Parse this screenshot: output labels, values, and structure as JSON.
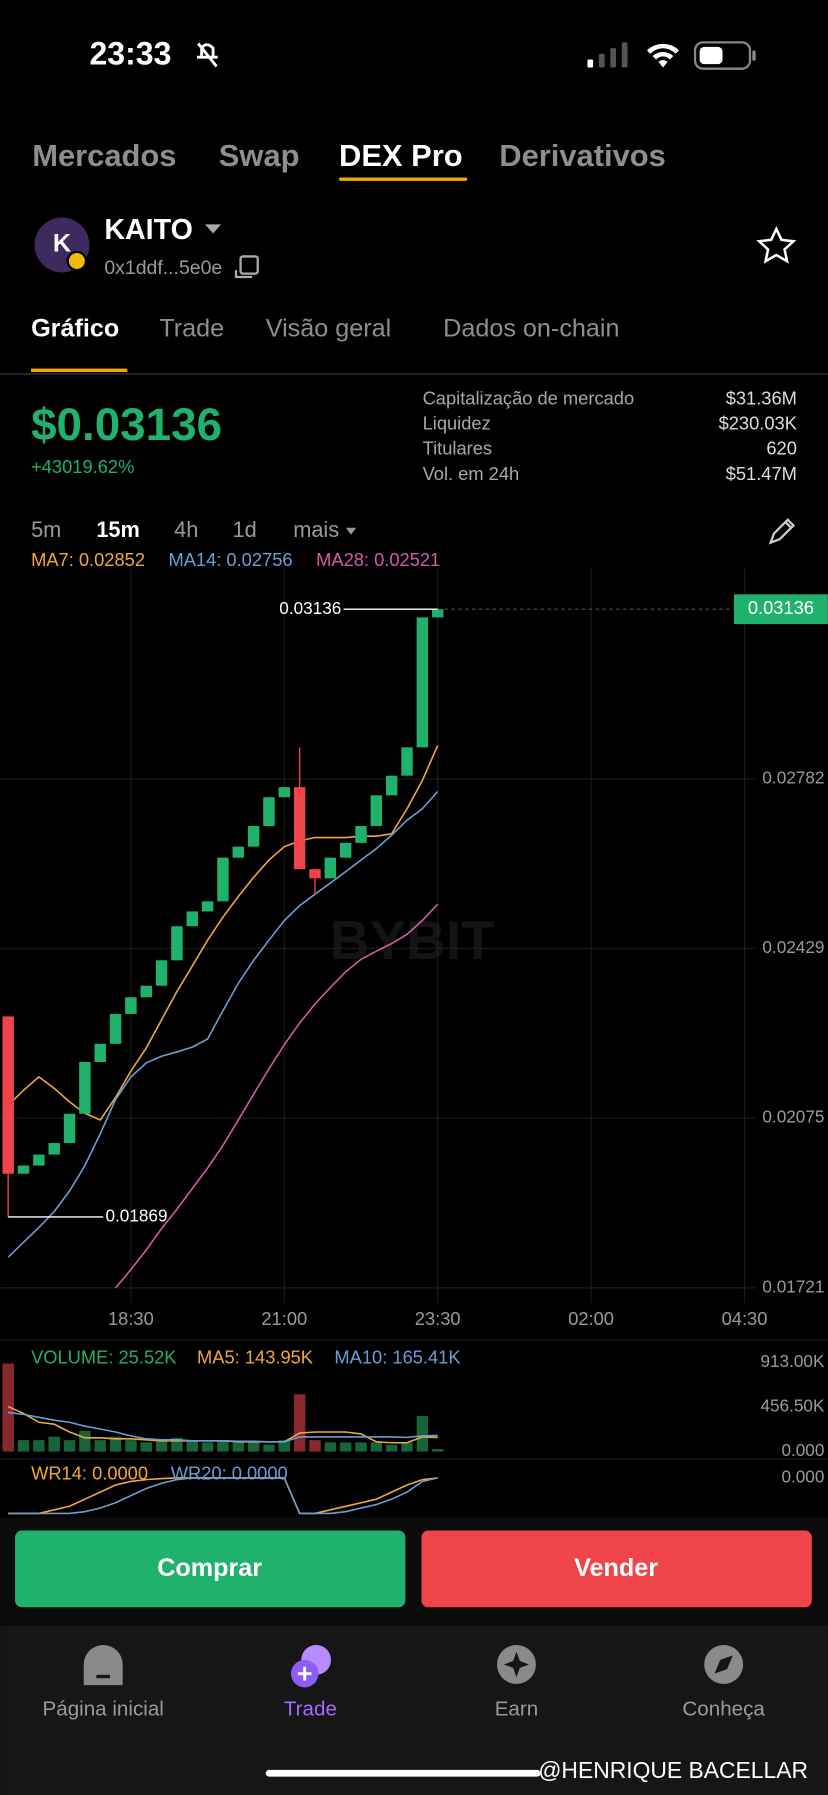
{
  "status_bar": {
    "time": "23:33"
  },
  "top_tabs": [
    "Mercados",
    "Swap",
    "DEX Pro",
    "Derivativos"
  ],
  "token": {
    "icon_letter": "K",
    "symbol": "KAITO",
    "address": "0x1ddf...5e0e"
  },
  "sub_tabs": [
    "Gráfico",
    "Trade",
    "Visão geral",
    "Dados on-chain"
  ],
  "price": {
    "value": "$0.03136",
    "change": "+43019.62%"
  },
  "stats": [
    {
      "label": "Capitalização de mercado",
      "value": "$31.36M"
    },
    {
      "label": "Liquidez",
      "value": "$230.03K"
    },
    {
      "label": "Titulares",
      "value": "620"
    },
    {
      "label": "Vol. em 24h",
      "value": "$51.47M"
    }
  ],
  "intervals": [
    "5m",
    "15m",
    "4h",
    "1d",
    "mais"
  ],
  "watermark": "BYBIT",
  "chart_data": [
    {
      "type": "candlestick",
      "grid": true,
      "up_color": "#20b26c",
      "down_color": "#ef454a",
      "categories": [
        null,
        null,
        null,
        null,
        null,
        null,
        null,
        null,
        "18:30",
        null,
        null,
        null,
        null,
        null,
        null,
        null,
        null,
        null,
        "21:00",
        null,
        null,
        null,
        null,
        null,
        null,
        null,
        null,
        null,
        "23:30",
        null,
        null,
        null,
        null,
        null,
        null,
        null,
        null,
        null,
        "02:00",
        null,
        null,
        null,
        null,
        null,
        null,
        null,
        null,
        null,
        "04:30"
      ],
      "open": [
        0.02287,
        0.01959,
        0.01976,
        0.01999,
        0.02023,
        0.02084,
        0.02192,
        0.0223,
        0.02292,
        0.02327,
        0.02351,
        0.02404,
        0.02475,
        0.02506,
        0.02527,
        0.02618,
        0.02641,
        0.02684,
        0.02744,
        0.02765,
        0.02594,
        0.02575,
        0.02618,
        0.02649,
        0.02684,
        0.02748,
        0.02789,
        0.02848,
        0.03119,
        null,
        null,
        null,
        null,
        null,
        null,
        null,
        null,
        null,
        null,
        null,
        null,
        null,
        null,
        null,
        null,
        null,
        null,
        null,
        null
      ],
      "high": [
        0.02287,
        0.01976,
        0.01999,
        0.02023,
        0.02084,
        0.02192,
        0.0223,
        0.02292,
        0.02327,
        0.02351,
        0.02404,
        0.02475,
        0.02506,
        0.02527,
        0.02618,
        0.02641,
        0.02684,
        0.02744,
        0.02765,
        0.02848,
        0.02594,
        0.02618,
        0.02649,
        0.02684,
        0.02748,
        0.02789,
        0.02848,
        0.03119,
        0.03136,
        null,
        null,
        null,
        null,
        null,
        null,
        null,
        null,
        null,
        null,
        null,
        null,
        null,
        null,
        null,
        null,
        null,
        null,
        null,
        null
      ],
      "low": [
        0.01869,
        0.01959,
        0.01976,
        0.01999,
        0.02023,
        0.02084,
        0.02192,
        0.0223,
        0.02292,
        0.02327,
        0.02351,
        0.02404,
        0.02475,
        0.02506,
        0.02527,
        0.02618,
        0.02641,
        0.02684,
        0.02744,
        0.02594,
        0.02541,
        0.02575,
        0.02618,
        0.02649,
        0.02684,
        0.02748,
        0.02789,
        0.02848,
        0.03119,
        null,
        null,
        null,
        null,
        null,
        null,
        null,
        null,
        null,
        null,
        null,
        null,
        null,
        null,
        null,
        null,
        null,
        null,
        null,
        null
      ],
      "close": [
        0.01959,
        0.01976,
        0.01999,
        0.02023,
        0.02084,
        0.02192,
        0.0223,
        0.02292,
        0.02327,
        0.02351,
        0.02404,
        0.02475,
        0.02506,
        0.02527,
        0.02618,
        0.02641,
        0.02684,
        0.02744,
        0.02765,
        0.02594,
        0.02575,
        0.02618,
        0.02649,
        0.02684,
        0.02748,
        0.02789,
        0.02848,
        0.03119,
        0.03136,
        null,
        null,
        null,
        null,
        null,
        null,
        null,
        null,
        null,
        null,
        null,
        null,
        null,
        null,
        null,
        null,
        null,
        null,
        null,
        null
      ],
      "series": [
        {
          "name": "MA7: 0.02852",
          "color": "#f0a83a",
          "values": [
            0.02102,
            0.02133,
            0.02161,
            0.02137,
            0.02109,
            0.02085,
            0.02071,
            0.02118,
            0.02173,
            0.02221,
            0.0228,
            0.02339,
            0.02392,
            0.02446,
            0.02494,
            0.02537,
            0.02577,
            0.02613,
            0.02641,
            0.02653,
            0.0266,
            0.0266,
            0.0266,
            0.02663,
            0.02663,
            0.02668,
            0.0272,
            0.02779,
            0.02852,
            null,
            null,
            null,
            null,
            null,
            null,
            null,
            null,
            null,
            null,
            null,
            null,
            null,
            null,
            null,
            null,
            null,
            null,
            null,
            null
          ]
        },
        {
          "name": "MA14: 0.02756",
          "color": "#6a9fd4",
          "values": [
            0.01785,
            0.01816,
            0.01847,
            0.0188,
            0.01923,
            0.01976,
            0.02042,
            0.02114,
            0.02161,
            0.0219,
            0.02204,
            0.02213,
            0.02223,
            0.0224,
            0.02299,
            0.02356,
            0.02404,
            0.02446,
            0.02487,
            0.02518,
            0.02542,
            0.02565,
            0.02589,
            0.02613,
            0.02637,
            0.02665,
            0.02696,
            0.0272,
            0.02756,
            null,
            null,
            null,
            null,
            null,
            null,
            null,
            null,
            null,
            null,
            null,
            null,
            null,
            null,
            null,
            null,
            null,
            null,
            null,
            null
          ]
        },
        {
          "name": "MA28: 0.02521",
          "color": "#d659a8",
          "values": [
            null,
            null,
            null,
            null,
            null,
            null,
            null,
            0.01721,
            0.01759,
            0.018,
            0.01845,
            0.01885,
            0.01928,
            0.01971,
            0.02018,
            0.02071,
            0.02125,
            0.02178,
            0.02228,
            0.02273,
            0.02313,
            0.02347,
            0.0238,
            0.02406,
            0.02423,
            0.02439,
            0.02458,
            0.02487,
            0.02521,
            null,
            null,
            null,
            null,
            null,
            null,
            null,
            null,
            null,
            null,
            null,
            null,
            null,
            null,
            null,
            null,
            null,
            null,
            null,
            null
          ]
        }
      ],
      "ylim": [
        0.0169,
        0.0322
      ],
      "yticks": [
        0.01721,
        0.02075,
        0.02429,
        0.02782
      ]
    },
    {
      "type": "bar",
      "grid": false,
      "up_color": "#17643a",
      "down_color": "#8a2830",
      "series": [
        {
          "type": "bar",
          "name": "VOLUME: 25.52K",
          "color": "#20b26c",
          "values": [
            900000,
            117000,
            117000,
            152000,
            117000,
            211000,
            117000,
            152000,
            117000,
            94000,
            117000,
            140000,
            117000,
            94000,
            117000,
            94000,
            94000,
            70000,
            117000,
            585000,
            117000,
            94000,
            94000,
            94000,
            94000,
            70000,
            94000,
            363000,
            25520,
            null,
            null,
            null,
            null,
            null,
            null,
            null,
            null,
            null,
            null,
            null,
            null,
            null,
            null,
            null,
            null,
            null,
            null,
            null,
            null
          ]
        },
        {
          "type": "line",
          "name": "MA5: 143.95K",
          "color": "#f0a83a",
          "values": [
            460000,
            390000,
            300000,
            280000,
            200000,
            140000,
            140000,
            130000,
            130000,
            120000,
            110000,
            110000,
            110000,
            110000,
            110000,
            100000,
            100000,
            100000,
            100000,
            190000,
            200000,
            200000,
            200000,
            180000,
            100000,
            90000,
            90000,
            150000,
            143950,
            null,
            null,
            null,
            null,
            null,
            null,
            null,
            null,
            null,
            null,
            null,
            null,
            null,
            null,
            null,
            null,
            null,
            null,
            null,
            null
          ]
        },
        {
          "type": "line",
          "name": "MA10: 165.41K",
          "color": "#6a9fd4",
          "values": [
            400000,
            380000,
            350000,
            320000,
            300000,
            260000,
            230000,
            200000,
            160000,
            130000,
            120000,
            120000,
            110000,
            110000,
            110000,
            105000,
            105000,
            100000,
            100000,
            150000,
            150000,
            150000,
            150000,
            150000,
            150000,
            150000,
            145000,
            160000,
            165410,
            null,
            null,
            null,
            null,
            null,
            null,
            null,
            null,
            null,
            null,
            null,
            null,
            null,
            null,
            null,
            null,
            null,
            null,
            null,
            null
          ]
        }
      ],
      "ylim": [
        0,
        1088000
      ],
      "yticks": [
        {
          "value": 0,
          "label": "0.000"
        },
        {
          "value": 456500,
          "label": "456.50K"
        },
        {
          "value": 913000,
          "label": "913.00K"
        }
      ]
    },
    {
      "type": "line",
      "grid": false,
      "series": [
        {
          "name": "WR14: 0.0000",
          "color": "#f0a83a",
          "values": [
            -100,
            -100,
            -100,
            -90,
            -80,
            -60,
            -40,
            -20,
            -10,
            -5,
            -2,
            0,
            0,
            0,
            0,
            0,
            0,
            0,
            0,
            -100,
            -100,
            -90,
            -80,
            -70,
            -60,
            -40,
            -20,
            -5,
            0,
            null,
            null,
            null,
            null,
            null,
            null,
            null,
            null,
            null,
            null,
            null,
            null,
            null,
            null,
            null,
            null,
            null,
            null,
            null,
            null
          ]
        },
        {
          "name": "WR20: 0.0000",
          "color": "#6a9fd4",
          "values": [
            -100,
            -100,
            -100,
            -100,
            -100,
            -95,
            -85,
            -70,
            -50,
            -30,
            -15,
            -5,
            0,
            0,
            0,
            0,
            0,
            0,
            0,
            -100,
            -100,
            -100,
            -95,
            -85,
            -75,
            -60,
            -40,
            -10,
            0,
            null,
            null,
            null,
            null,
            null,
            null,
            null,
            null,
            null,
            null,
            null,
            null,
            null,
            null,
            null,
            null,
            null,
            null,
            null,
            null
          ]
        }
      ],
      "ylim": [
        -100,
        0
      ],
      "yticks": [
        {
          "value": 0,
          "label": "0.000"
        }
      ]
    }
  ],
  "actions": [
    "Comprar",
    "Vender"
  ],
  "nav": [
    "Página inicial",
    "Trade",
    "Earn",
    "Conheça"
  ],
  "credit": "@HENRIQUE BACELLAR"
}
